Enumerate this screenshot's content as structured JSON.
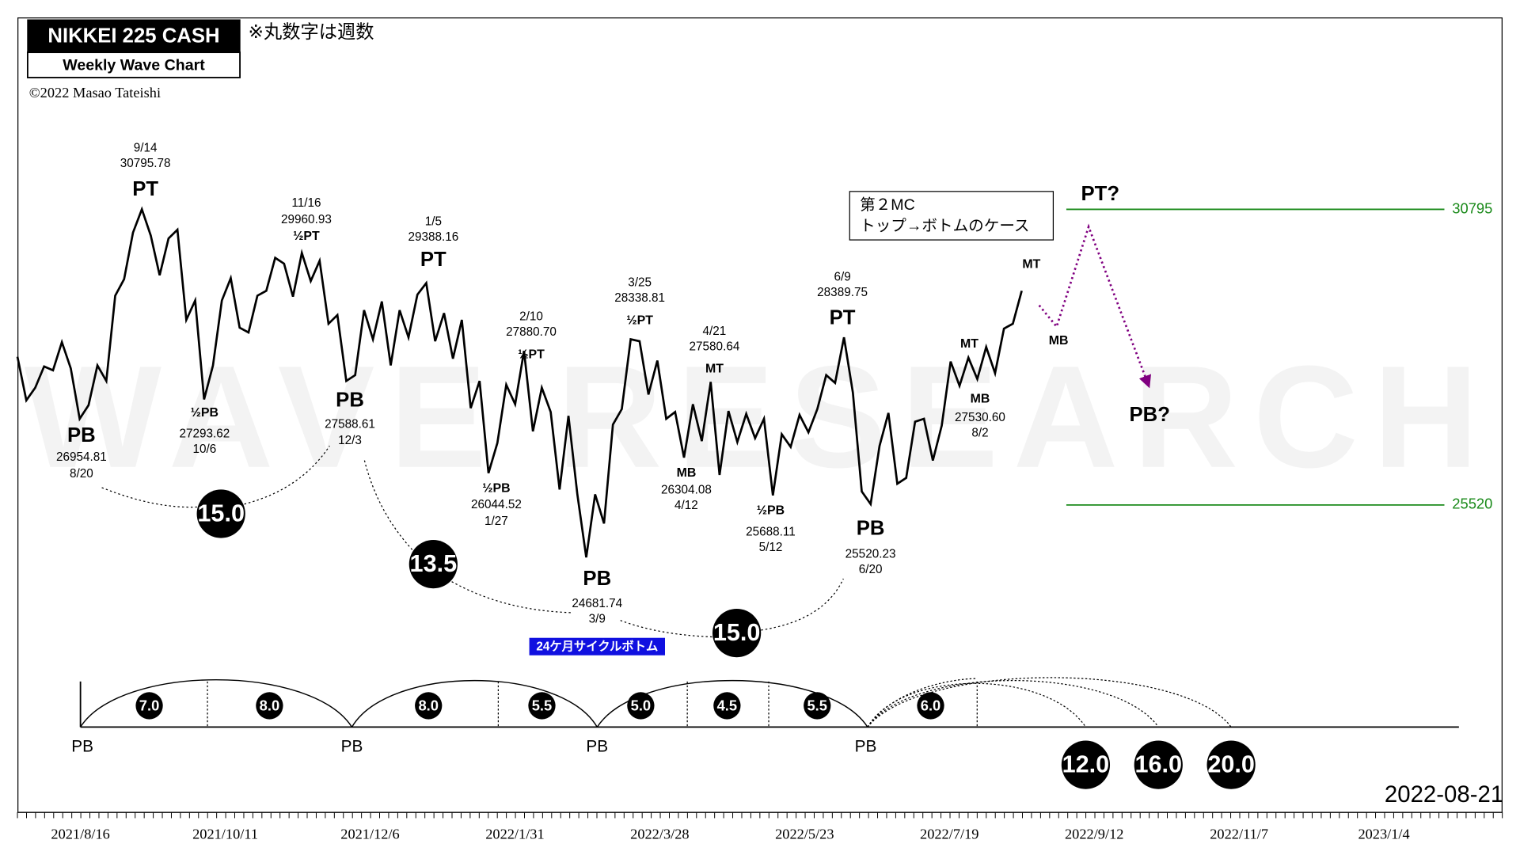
{
  "chart_data": {
    "type": "line",
    "title": "NIKKEI 225 CASH",
    "subtitle": "Weekly Wave Chart",
    "note": "※丸数字は週数",
    "copyright": "©2022 Masao Tateishi",
    "watermark": "WAVE RESEARCH",
    "date": "2022-08-21",
    "box_text": [
      "第２MC",
      "トップ→ボトムのケース"
    ],
    "cycle_label": "24ケ月サイクルボトム",
    "xticks": [
      "2021/8/16",
      "2021/10/11",
      "2021/12/6",
      "2022/1/31",
      "2022/3/28",
      "2022/5/23",
      "2022/7/19",
      "2022/9/12",
      "2022/11/7",
      "2023/1/4"
    ],
    "ylim": [
      23000,
      33000
    ],
    "series": [
      {
        "color": "#000000",
        "values": [
          28165,
          27387,
          27612,
          27992,
          27923,
          28425,
          27958,
          27058,
          27300,
          28010,
          27733,
          29255,
          29549,
          30380,
          30796,
          30328,
          29619,
          30276,
          30432,
          28823,
          29169,
          27404,
          28010,
          29169,
          29567,
          28684,
          28598,
          29255,
          29342,
          29930,
          29826,
          29238,
          30017,
          29515,
          29878,
          28754,
          28909,
          27733,
          27837,
          28996,
          28477,
          29151,
          28010,
          28996,
          28511,
          29273,
          29480,
          28442,
          28944,
          28131,
          28823,
          27248,
          27733,
          26089,
          26626,
          27664,
          27318,
          28269,
          26833,
          27612,
          27179,
          25795,
          27110,
          25709,
          24584,
          25709,
          25190,
          26954,
          27231,
          28477,
          28442,
          27491,
          28096,
          27058,
          27179,
          26366,
          27318,
          26660,
          27716,
          26055,
          27197,
          26643,
          27145,
          26712,
          27058,
          25691,
          26781,
          26556,
          27127,
          26816,
          27231,
          27837,
          27698,
          28511,
          27525,
          25761,
          25536,
          26574,
          27162,
          25899,
          26003,
          27006,
          27058,
          26314,
          26937,
          28079,
          27646,
          28148,
          27767,
          28338,
          27871,
          28667,
          28754,
          29342
        ]
      },
      {
        "color": "#800080",
        "style": "dotted",
        "values": [
          29082,
          28702,
          30484,
          27646
        ]
      }
    ],
    "reference_lines": [
      {
        "value": 30795,
        "color": "#1a8a1a"
      },
      {
        "value": 25520,
        "color": "#1a8a1a"
      }
    ],
    "pivots": [
      {
        "label": "PB",
        "price": "26954.81",
        "date": "8/20"
      },
      {
        "label": "PT",
        "price": "30795.78",
        "date": "9/14"
      },
      {
        "label": "½PB",
        "price": "27293.62",
        "date": "10/6"
      },
      {
        "label": "½PT",
        "price": "29960.93",
        "date": "11/16"
      },
      {
        "label": "PB",
        "price": "27588.61",
        "date": "12/3"
      },
      {
        "label": "PT",
        "price": "29388.16",
        "date": "1/5"
      },
      {
        "label": "½PT",
        "price": "27880.70",
        "date": "2/10"
      },
      {
        "label": "½PB",
        "price": "26044.52",
        "date": "1/27"
      },
      {
        "label": "PB",
        "price": "24681.74",
        "date": "3/9"
      },
      {
        "label": "½PT",
        "price": "28338.81",
        "date": "3/25"
      },
      {
        "label": "MB",
        "price": "26304.08",
        "date": "4/12"
      },
      {
        "label": "MT",
        "price": "27580.64",
        "date": "4/21"
      },
      {
        "label": "½PB",
        "price": "25688.11",
        "date": "5/12"
      },
      {
        "label": "PT",
        "price": "28389.75",
        "date": "6/9"
      },
      {
        "label": "PB",
        "price": "25520.23",
        "date": "6/20"
      },
      {
        "label": "MT"
      },
      {
        "label": "MB",
        "price": "27530.60",
        "date": "8/2"
      },
      {
        "label": "MT"
      },
      {
        "label": "MB"
      },
      {
        "label": "PT?"
      },
      {
        "label": "PB?"
      }
    ],
    "wave_counts": [
      "15.0",
      "13.5",
      "15.0"
    ],
    "cycle_segments": [
      "7.0",
      "8.0",
      "8.0",
      "5.5",
      "5.0",
      "4.5",
      "5.5",
      "6.0"
    ],
    "cycle_bottoms": [
      "PB",
      "PB",
      "PB",
      "PB"
    ],
    "projections": [
      "12.0",
      "16.0",
      "20.0"
    ]
  }
}
